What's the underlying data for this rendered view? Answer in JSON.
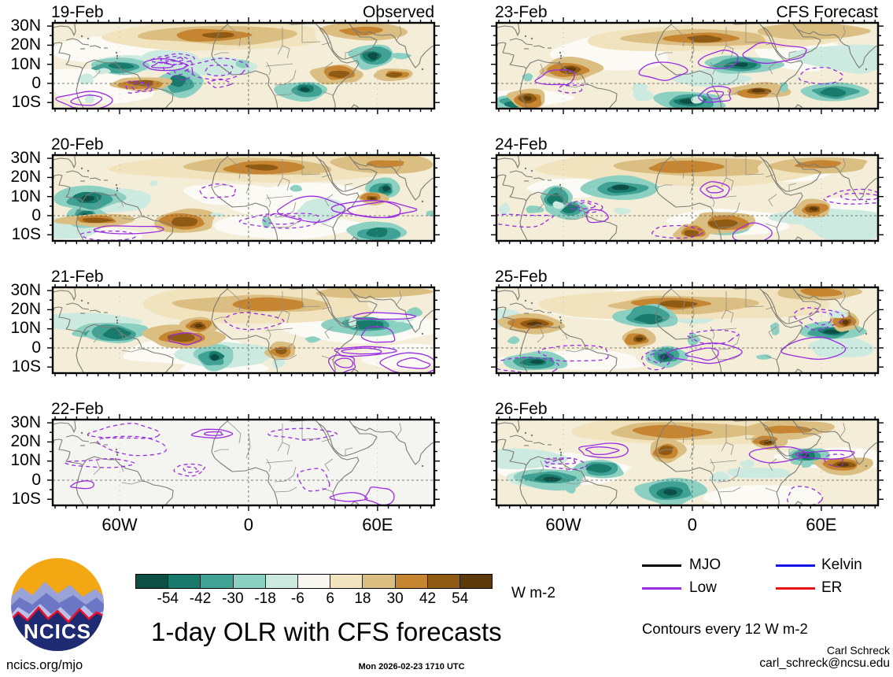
{
  "figure": {
    "title": "1-day OLR with CFS forecasts"
  },
  "columns": [
    {
      "title": "Observed"
    },
    {
      "title": "CFS Forecast"
    }
  ],
  "panels": [
    {
      "date": "19-Feb",
      "type": "observed",
      "shaded": true,
      "seed": 101
    },
    {
      "date": "20-Feb",
      "type": "observed",
      "shaded": true,
      "seed": 202
    },
    {
      "date": "21-Feb",
      "type": "observed",
      "shaded": true,
      "seed": 303
    },
    {
      "date": "22-Feb",
      "type": "observed",
      "shaded": false,
      "seed": 404
    },
    {
      "date": "23-Feb",
      "type": "cfs_forecast",
      "shaded": true,
      "seed": 505
    },
    {
      "date": "24-Feb",
      "type": "cfs_forecast",
      "shaded": true,
      "seed": 606
    },
    {
      "date": "25-Feb",
      "type": "cfs_forecast",
      "shaded": true,
      "seed": 707
    },
    {
      "date": "26-Feb",
      "type": "cfs_forecast",
      "shaded": true,
      "seed": 808
    }
  ],
  "axes": {
    "y_labels": [
      "30N",
      "20N",
      "10N",
      "0",
      "10S"
    ],
    "x_labels": [
      "60W",
      "0",
      "60E"
    ]
  },
  "colorbar": {
    "tick_labels": [
      "-54",
      "-42",
      "-30",
      "-18",
      "-6",
      "6",
      "18",
      "30",
      "42",
      "54"
    ],
    "colors": [
      "#0d4f45",
      "#187a6b",
      "#3fa294",
      "#8cd0c2",
      "#cdeae1",
      "#f7f6f1",
      "#f1e3bd",
      "#dbbe81",
      "#c68531",
      "#8f5a14",
      "#5e3a0a"
    ],
    "unit_label": "W m-2"
  },
  "legend": {
    "items": [
      {
        "label": "MJO",
        "color": "#000000"
      },
      {
        "label": "Kelvin",
        "color": "#1414e6"
      },
      {
        "label": "Low",
        "color": "#a02be0"
      },
      {
        "label": "ER",
        "color": "#e81414"
      }
    ],
    "note": "Contours every 12 W m-2"
  },
  "map_style": {
    "contour_color": "#9b2be2",
    "coastline_color": "#7c7c74",
    "border_color": "#90908a",
    "reference_line_color": "#555555",
    "background_shaded": "#f4eed9",
    "background_unshaded": "#f4f4f1",
    "white_wash": "#fbfaf5"
  },
  "logo": {
    "text": "NCICS"
  },
  "footer": {
    "site_link": "ncics.org/mjo",
    "timestamp": "Mon 2026-02-23 1710 UTC",
    "credit_name": "Carl Schreck",
    "credit_email": "carl_schreck@ncsu.edu"
  }
}
